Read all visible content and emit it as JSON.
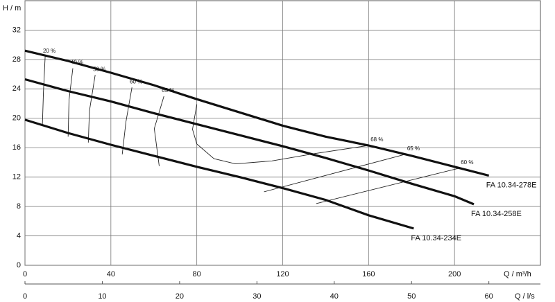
{
  "chart_data": {
    "type": "line",
    "y_label": "H / m",
    "x_label": "Q / m³/h",
    "x2_label": "Q / l/s",
    "xlim": [
      0,
      240
    ],
    "xticks": [
      0,
      40,
      80,
      120,
      160,
      200
    ],
    "x2lim": [
      0,
      66.67
    ],
    "x2ticks": [
      0,
      10,
      20,
      30,
      40,
      50,
      60
    ],
    "ylim": [
      0,
      36
    ],
    "yticks": [
      0,
      4,
      8,
      12,
      16,
      20,
      24,
      28,
      32
    ],
    "grid": true,
    "series": [
      {
        "name": "FA 10.34-278E",
        "color": "#111111",
        "x": [
          0,
          20,
          40,
          60,
          80,
          100,
          120,
          140,
          160,
          180,
          200,
          216
        ],
        "values": [
          29.2,
          27.8,
          26.2,
          24.5,
          22.6,
          20.8,
          19.0,
          17.5,
          16.3,
          14.9,
          13.4,
          12.2
        ]
      },
      {
        "name": "FA 10.34-258E",
        "color": "#111111",
        "x": [
          0,
          20,
          40,
          60,
          80,
          100,
          120,
          140,
          160,
          180,
          200,
          209
        ],
        "values": [
          25.3,
          23.7,
          22.3,
          20.7,
          19.2,
          17.7,
          16.2,
          14.6,
          12.9,
          11.1,
          9.4,
          8.3
        ]
      },
      {
        "name": "FA 10.34-234E",
        "color": "#111111",
        "x": [
          0,
          20,
          40,
          60,
          80,
          100,
          120,
          140,
          160,
          181
        ],
        "values": [
          19.8,
          18.0,
          16.4,
          14.9,
          13.4,
          12.0,
          10.5,
          8.9,
          6.8,
          5.0
        ]
      }
    ],
    "efficiency_curves": [
      {
        "name": "20 %",
        "x": [
          9.4,
          8.6,
          8.1
        ],
        "values": [
          28.4,
          23.5,
          19.0
        ]
      },
      {
        "name": "40 %",
        "x": [
          22.3,
          20.5,
          20.1
        ],
        "values": [
          26.8,
          22.5,
          17.5
        ]
      },
      {
        "name": "50 %",
        "x": [
          32.7,
          30.0,
          29.5
        ],
        "values": [
          25.9,
          21.0,
          16.7
        ]
      },
      {
        "name": "60 %",
        "x": [
          49.8,
          47.0,
          45.3
        ],
        "values": [
          24.2,
          19.5,
          15.1
        ]
      },
      {
        "name": "65 %",
        "x": [
          64.7,
          60.2,
          62.5
        ],
        "values": [
          23.0,
          18.6,
          13.5
        ]
      },
      {
        "name": "68 %",
        "x": [
          80,
          78,
          80,
          88,
          98,
          115,
          135,
          160
        ],
        "values": [
          21.9,
          18.5,
          16.5,
          14.5,
          13.8,
          14.2,
          15.2,
          16.3
        ]
      },
      {
        "name": "65 %",
        "x": [
          111.3,
          177
        ],
        "values": [
          10.0,
          15.1
        ]
      },
      {
        "name": "60 %",
        "x": [
          135.6,
          202
        ],
        "values": [
          8.4,
          13.2
        ]
      }
    ]
  }
}
